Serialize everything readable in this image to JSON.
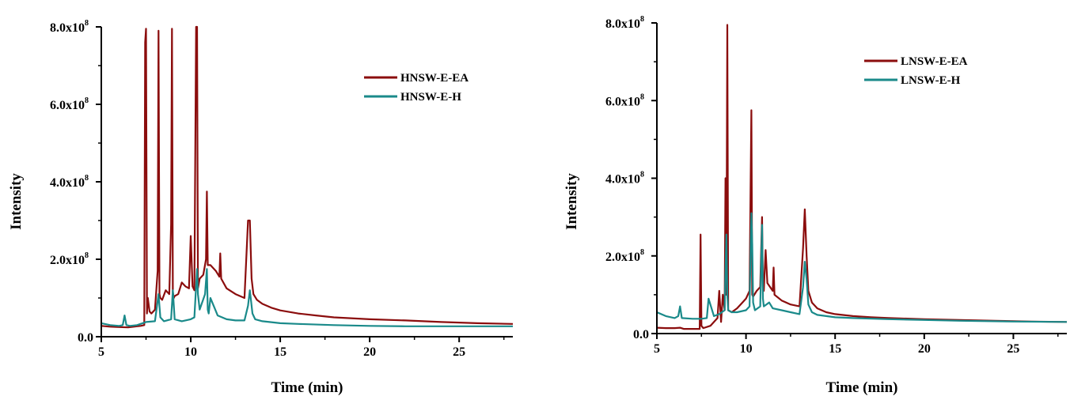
{
  "chart_data": [
    {
      "type": "line",
      "title": "",
      "xlabel": "Time (min)",
      "ylabel": "Intensity",
      "xlim": [
        5,
        28
      ],
      "ylim": [
        0,
        800000000
      ],
      "x_ticks": [
        5,
        10,
        15,
        20,
        25
      ],
      "y_ticks": [
        {
          "value": 0,
          "label": "0.0"
        },
        {
          "value": 200000000,
          "mantissa": "2.0x10",
          "exp": "8"
        },
        {
          "value": 400000000,
          "mantissa": "4.0x10",
          "exp": "8"
        },
        {
          "value": 600000000,
          "mantissa": "6.0x10",
          "exp": "8"
        },
        {
          "value": 800000000,
          "mantissa": "8.0x10",
          "exp": "8"
        }
      ],
      "grid": false,
      "legend_position": "top-right",
      "series": [
        {
          "name": "HNSW-E-EA",
          "color": "#8b0d0d",
          "x": [
            5.0,
            5.5,
            6.0,
            6.5,
            7.0,
            7.2,
            7.4,
            7.45,
            7.5,
            7.55,
            7.6,
            7.7,
            7.8,
            8.0,
            8.15,
            8.2,
            8.25,
            8.3,
            8.4,
            8.6,
            8.8,
            8.9,
            8.95,
            9.0,
            9.05,
            9.1,
            9.3,
            9.5,
            9.7,
            9.9,
            10.0,
            10.1,
            10.2,
            10.3,
            10.35,
            10.4,
            10.5,
            10.7,
            10.85,
            10.9,
            10.95,
            11.1,
            11.4,
            11.6,
            11.65,
            11.7,
            12.0,
            12.5,
            13.0,
            13.2,
            13.3,
            13.4,
            13.5,
            13.7,
            14.0,
            14.5,
            15.0,
            16.0,
            17.0,
            18.0,
            20.0,
            22.0,
            24.0,
            26.0,
            28.0
          ],
          "y": [
            28000000,
            26000000,
            25000000,
            24000000,
            27000000,
            28000000,
            30000000,
            760000000,
            795000000,
            60000000,
            100000000,
            65000000,
            60000000,
            70000000,
            170000000,
            790000000,
            110000000,
            100000000,
            95000000,
            120000000,
            110000000,
            290000000,
            795000000,
            115000000,
            100000000,
            105000000,
            110000000,
            140000000,
            130000000,
            125000000,
            260000000,
            130000000,
            120000000,
            800000000,
            800000000,
            125000000,
            150000000,
            160000000,
            200000000,
            375000000,
            185000000,
            185000000,
            170000000,
            155000000,
            215000000,
            150000000,
            125000000,
            110000000,
            100000000,
            300000000,
            300000000,
            150000000,
            110000000,
            95000000,
            85000000,
            75000000,
            68000000,
            60000000,
            55000000,
            50000000,
            45000000,
            42000000,
            38000000,
            35000000,
            33000000
          ]
        },
        {
          "name": "HNSW-E-H",
          "color": "#1a8a8a",
          "x": [
            5.0,
            5.5,
            6.0,
            6.2,
            6.3,
            6.4,
            6.6,
            7.0,
            7.5,
            8.0,
            8.2,
            8.3,
            8.5,
            8.9,
            9.0,
            9.1,
            9.5,
            10.0,
            10.2,
            10.35,
            10.4,
            10.5,
            10.8,
            10.9,
            10.95,
            11.0,
            11.1,
            11.5,
            12.0,
            12.5,
            13.0,
            13.2,
            13.3,
            13.45,
            13.6,
            14.0,
            15.0,
            16.0,
            18.0,
            20.0,
            22.0,
            25.0,
            28.0
          ],
          "y": [
            35000000,
            30000000,
            28000000,
            30000000,
            55000000,
            30000000,
            28000000,
            30000000,
            38000000,
            40000000,
            110000000,
            50000000,
            40000000,
            45000000,
            120000000,
            45000000,
            40000000,
            45000000,
            50000000,
            175000000,
            110000000,
            70000000,
            110000000,
            175000000,
            70000000,
            60000000,
            100000000,
            55000000,
            45000000,
            42000000,
            42000000,
            80000000,
            120000000,
            60000000,
            45000000,
            40000000,
            35000000,
            33000000,
            30000000,
            28000000,
            27000000,
            27000000,
            27000000
          ]
        }
      ]
    },
    {
      "type": "line",
      "title": "",
      "xlabel": "Time (min)",
      "ylabel": "Intensity",
      "xlim": [
        5,
        28
      ],
      "ylim": [
        0,
        800000000
      ],
      "x_ticks": [
        5,
        10,
        15,
        20,
        25
      ],
      "y_ticks": [
        {
          "value": 0,
          "label": "0.0"
        },
        {
          "value": 200000000,
          "mantissa": "2.0x10",
          "exp": "8"
        },
        {
          "value": 400000000,
          "mantissa": "4.0x10",
          "exp": "8"
        },
        {
          "value": 600000000,
          "mantissa": "6.0x10",
          "exp": "8"
        },
        {
          "value": 800000000,
          "mantissa": "8.0x10",
          "exp": "8"
        }
      ],
      "grid": false,
      "legend_position": "top-right",
      "series": [
        {
          "name": "LNSW-E-EA",
          "color": "#8b0d0d",
          "x": [
            5.0,
            5.5,
            6.0,
            6.3,
            6.5,
            7.0,
            7.4,
            7.45,
            7.5,
            7.6,
            8.0,
            8.4,
            8.5,
            8.6,
            8.7,
            8.8,
            8.85,
            8.9,
            8.95,
            9.0,
            9.2,
            9.5,
            9.8,
            10.0,
            10.2,
            10.3,
            10.35,
            10.4,
            10.6,
            10.8,
            10.9,
            10.95,
            11.0,
            11.1,
            11.2,
            11.5,
            11.55,
            11.6,
            12.0,
            12.5,
            13.0,
            13.2,
            13.3,
            13.4,
            13.5,
            13.7,
            14.0,
            14.5,
            15.0,
            16.0,
            17.0,
            18.0,
            20.0,
            22.0,
            24.0,
            26.0,
            28.0
          ],
          "y": [
            15000000,
            14000000,
            14000000,
            15000000,
            12000000,
            12000000,
            12000000,
            255000000,
            20000000,
            14000000,
            20000000,
            40000000,
            110000000,
            30000000,
            100000000,
            60000000,
            400000000,
            100000000,
            795000000,
            60000000,
            55000000,
            65000000,
            80000000,
            90000000,
            110000000,
            575000000,
            100000000,
            95000000,
            110000000,
            120000000,
            300000000,
            120000000,
            110000000,
            215000000,
            130000000,
            110000000,
            170000000,
            100000000,
            85000000,
            75000000,
            70000000,
            220000000,
            320000000,
            200000000,
            110000000,
            80000000,
            65000000,
            55000000,
            50000000,
            45000000,
            42000000,
            40000000,
            37000000,
            35000000,
            33000000,
            31000000,
            30000000
          ]
        },
        {
          "name": "LNSW-E-H",
          "color": "#1a8a8a",
          "x": [
            5.0,
            5.5,
            6.0,
            6.2,
            6.3,
            6.4,
            7.0,
            7.5,
            7.8,
            7.9,
            8.2,
            8.5,
            8.8,
            8.9,
            8.95,
            9.0,
            9.2,
            9.5,
            10.0,
            10.2,
            10.3,
            10.35,
            10.4,
            10.5,
            10.8,
            10.9,
            10.95,
            11.0,
            11.3,
            11.5,
            12.0,
            12.5,
            13.0,
            13.2,
            13.3,
            13.4,
            13.5,
            13.7,
            14.0,
            15.0,
            16.0,
            18.0,
            20.0,
            22.0,
            25.0,
            28.0
          ],
          "y": [
            55000000,
            45000000,
            40000000,
            45000000,
            70000000,
            40000000,
            38000000,
            38000000,
            40000000,
            90000000,
            45000000,
            50000000,
            60000000,
            255000000,
            100000000,
            60000000,
            55000000,
            55000000,
            60000000,
            70000000,
            310000000,
            230000000,
            80000000,
            60000000,
            70000000,
            280000000,
            90000000,
            70000000,
            80000000,
            65000000,
            60000000,
            55000000,
            50000000,
            120000000,
            185000000,
            140000000,
            75000000,
            55000000,
            48000000,
            42000000,
            40000000,
            37000000,
            35000000,
            33000000,
            31000000,
            30000000
          ]
        }
      ]
    }
  ]
}
